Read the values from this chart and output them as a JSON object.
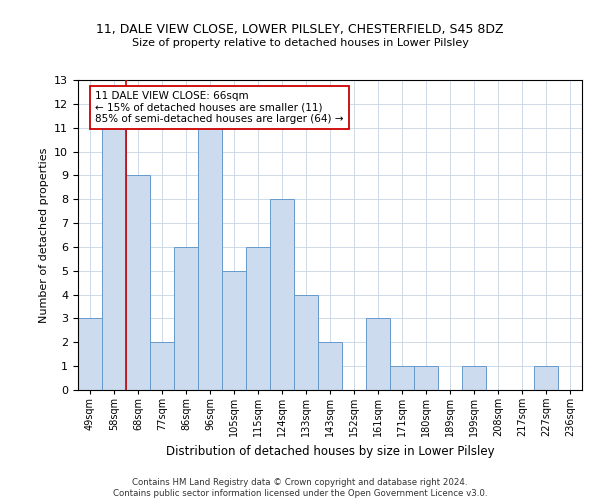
{
  "title1": "11, DALE VIEW CLOSE, LOWER PILSLEY, CHESTERFIELD, S45 8DZ",
  "title2": "Size of property relative to detached houses in Lower Pilsley",
  "xlabel": "Distribution of detached houses by size in Lower Pilsley",
  "ylabel": "Number of detached properties",
  "categories": [
    "49sqm",
    "58sqm",
    "68sqm",
    "77sqm",
    "86sqm",
    "96sqm",
    "105sqm",
    "115sqm",
    "124sqm",
    "133sqm",
    "143sqm",
    "152sqm",
    "161sqm",
    "171sqm",
    "180sqm",
    "189sqm",
    "199sqm",
    "208sqm",
    "217sqm",
    "227sqm",
    "236sqm"
  ],
  "values": [
    3,
    11,
    9,
    2,
    6,
    11,
    5,
    6,
    8,
    4,
    2,
    0,
    3,
    1,
    1,
    0,
    1,
    0,
    0,
    1,
    0
  ],
  "bar_color": "#ccdcee",
  "bar_edge_color": "#6699cc",
  "ylim": [
    0,
    13
  ],
  "yticks": [
    0,
    1,
    2,
    3,
    4,
    5,
    6,
    7,
    8,
    9,
    10,
    11,
    12,
    13
  ],
  "vline_x": 1.5,
  "vline_color": "#cc0000",
  "annotation_text": "11 DALE VIEW CLOSE: 66sqm\n← 15% of detached houses are smaller (11)\n85% of semi-detached houses are larger (64) →",
  "footer": "Contains HM Land Registry data © Crown copyright and database right 2024.\nContains public sector information licensed under the Open Government Licence v3.0.",
  "grid_color": "#c8d4e4",
  "background_color": "#ffffff",
  "fig_width": 6.0,
  "fig_height": 5.0
}
